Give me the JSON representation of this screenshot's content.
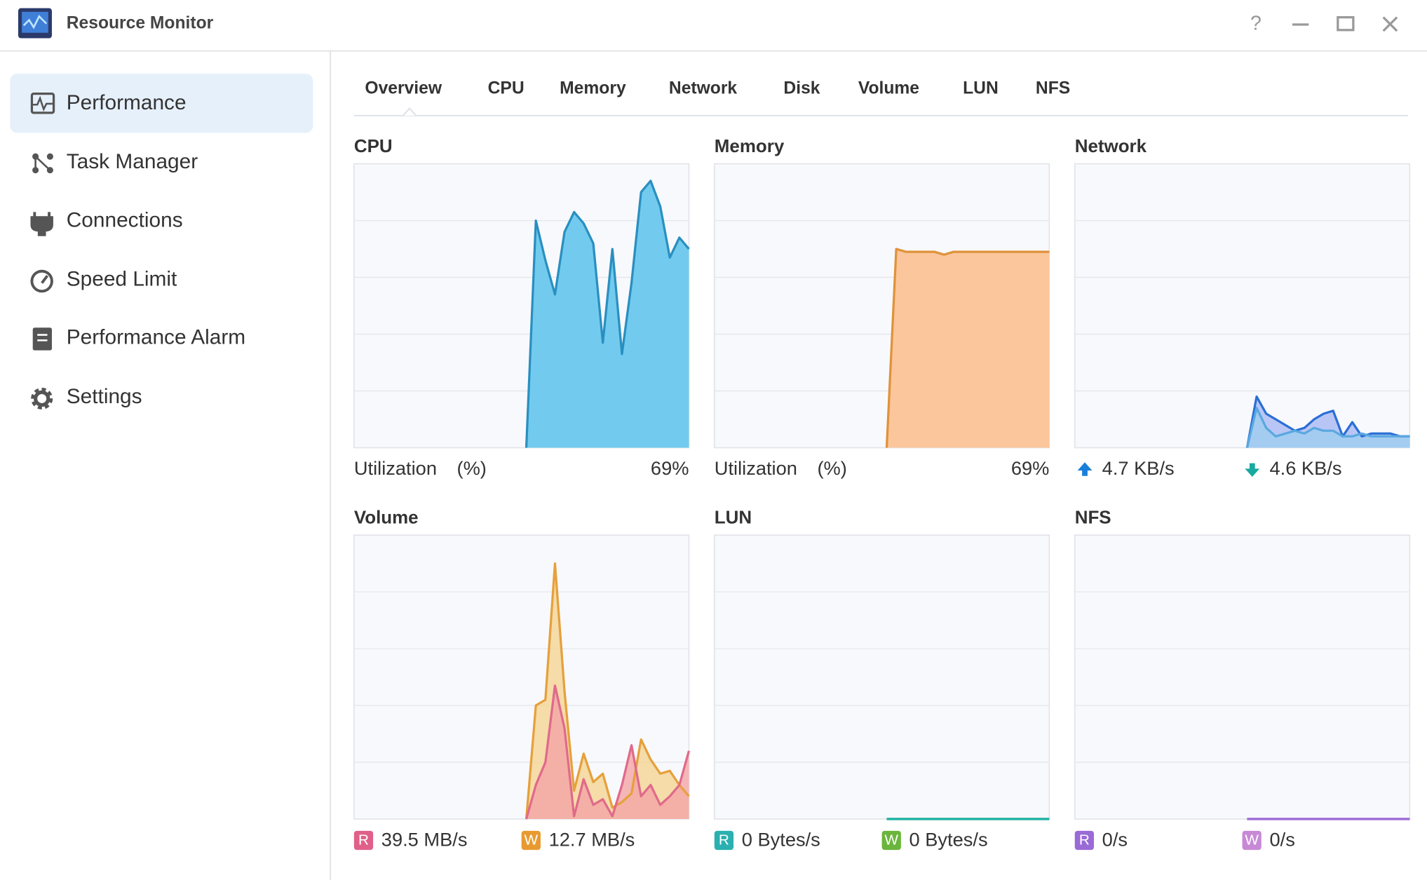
{
  "window": {
    "title": "Resource Monitor"
  },
  "sidebar": [
    "Performance",
    "Task Manager",
    "Connections",
    "Speed Limit",
    "Performance Alarm",
    "Settings"
  ],
  "tabs": [
    "Overview",
    "CPU",
    "Memory",
    "Network",
    "Disk",
    "Volume",
    "LUN",
    "NFS"
  ],
  "panels": [
    {
      "title": "CPU",
      "label": "Utilization",
      "unit": "(%)",
      "value": "69%",
      "series": [
        {
          "color": "#2a8fc0",
          "fill": "#72cbee",
          "values": [
            null,
            null,
            null,
            null,
            null,
            null,
            null,
            null,
            null,
            null,
            null,
            null,
            null,
            null,
            null,
            null,
            null,
            null,
            0,
            80,
            66,
            54,
            76,
            83,
            79,
            72,
            37,
            70,
            33,
            58,
            90,
            94,
            85,
            67,
            74,
            70
          ]
        }
      ]
    },
    {
      "title": "Memory",
      "label": "Utilization",
      "unit": "(%)",
      "value": "69%",
      "series": [
        {
          "color": "#e0923a",
          "fill": "#fbc69c",
          "values": [
            null,
            null,
            null,
            null,
            null,
            null,
            null,
            null,
            null,
            null,
            null,
            null,
            null,
            null,
            null,
            null,
            null,
            null,
            0,
            70,
            69,
            69,
            69,
            69,
            68,
            69,
            69,
            69,
            69,
            69,
            69,
            69,
            69,
            69,
            69,
            69
          ]
        }
      ]
    },
    {
      "title": "Network",
      "rates": [
        {
          "text": "4.7 KB/s",
          "color": "#1a7fd9"
        },
        {
          "text": "4.6 KB/s",
          "color": "#1aa9a0"
        }
      ],
      "series": [
        {
          "color": "#2a6fd6",
          "fill": "#a9b9f3",
          "values": [
            null,
            null,
            null,
            null,
            null,
            null,
            null,
            null,
            null,
            null,
            null,
            null,
            null,
            null,
            null,
            null,
            null,
            null,
            0,
            18,
            12,
            10,
            8,
            6,
            7,
            10,
            12,
            13,
            4,
            9,
            4,
            5,
            5,
            5,
            4,
            4
          ]
        },
        {
          "color": "#5aa8e0",
          "fill": "#9fcdf0",
          "values": [
            null,
            null,
            null,
            null,
            null,
            null,
            null,
            null,
            null,
            null,
            null,
            null,
            null,
            null,
            null,
            null,
            null,
            null,
            0,
            14,
            7,
            4,
            5,
            6,
            5,
            7,
            6,
            6,
            4,
            4,
            5,
            4,
            4,
            4,
            4,
            4
          ]
        }
      ]
    },
    {
      "title": "Volume",
      "rates": [
        {
          "badge": "R",
          "text": "39.5 MB/s",
          "color": "#e0608a"
        },
        {
          "badge": "W",
          "text": "12.7 MB/s",
          "color": "#e89a30"
        }
      ],
      "series": [
        {
          "color": "#e6a03c",
          "fill": "#f4d493",
          "values": [
            null,
            null,
            null,
            null,
            null,
            null,
            null,
            null,
            null,
            null,
            null,
            null,
            null,
            null,
            null,
            null,
            null,
            null,
            0,
            40,
            42,
            90,
            45,
            10,
            23,
            13,
            16,
            4,
            6,
            9,
            28,
            21,
            16,
            17,
            12,
            8
          ]
        },
        {
          "color": "#e06a8a",
          "fill": "#f4a5a5",
          "values": [
            null,
            null,
            null,
            null,
            null,
            null,
            null,
            null,
            null,
            null,
            null,
            null,
            null,
            null,
            null,
            null,
            null,
            null,
            0,
            12,
            20,
            47,
            32,
            1,
            14,
            5,
            7,
            1,
            12,
            26,
            8,
            12,
            5,
            8,
            12,
            24
          ]
        }
      ]
    },
    {
      "title": "LUN",
      "rates": [
        {
          "badge": "R",
          "text": "0 Bytes/s",
          "color": "#2ab0b0"
        },
        {
          "badge": "W",
          "text": "0 Bytes/s",
          "color": "#6ab53b"
        }
      ],
      "series": [
        {
          "color": "#6ab53b",
          "fill": "#cde8bb",
          "values": [
            null,
            null,
            null,
            null,
            null,
            null,
            null,
            null,
            null,
            null,
            null,
            null,
            null,
            null,
            null,
            null,
            null,
            null,
            0,
            0,
            0,
            0,
            0,
            0,
            0,
            0,
            0,
            0,
            0,
            0,
            0,
            0,
            0,
            0,
            0,
            0
          ]
        },
        {
          "color": "#1bb3a8",
          "fill": "#b5e6e2",
          "values": [
            null,
            null,
            null,
            null,
            null,
            null,
            null,
            null,
            null,
            null,
            null,
            null,
            null,
            null,
            null,
            null,
            null,
            null,
            0,
            0,
            0,
            0,
            0,
            0,
            0,
            0,
            0,
            0,
            0,
            0,
            0,
            0,
            0,
            0,
            0,
            0
          ]
        }
      ]
    },
    {
      "title": "NFS",
      "rates": [
        {
          "badge": "R",
          "text": "0/s",
          "color": "#9a6ad6"
        },
        {
          "badge": "W",
          "text": "0/s",
          "color": "#c789d6"
        }
      ],
      "series": [
        {
          "color": "#c789d6",
          "fill": "#ecd3f2",
          "values": [
            null,
            null,
            null,
            null,
            null,
            null,
            null,
            null,
            null,
            null,
            null,
            null,
            null,
            null,
            null,
            null,
            null,
            null,
            0,
            0,
            0,
            0,
            0,
            0,
            0,
            0,
            0,
            0,
            0,
            0,
            0,
            0,
            0,
            0,
            0,
            0
          ]
        },
        {
          "color": "#9a6ad6",
          "fill": "#dccbf3",
          "values": [
            null,
            null,
            null,
            null,
            null,
            null,
            null,
            null,
            null,
            null,
            null,
            null,
            null,
            null,
            null,
            null,
            null,
            null,
            0,
            0,
            0,
            0,
            0,
            0,
            0,
            0,
            0,
            0,
            0,
            0,
            0,
            0,
            0,
            0,
            0,
            0
          ]
        }
      ]
    }
  ]
}
